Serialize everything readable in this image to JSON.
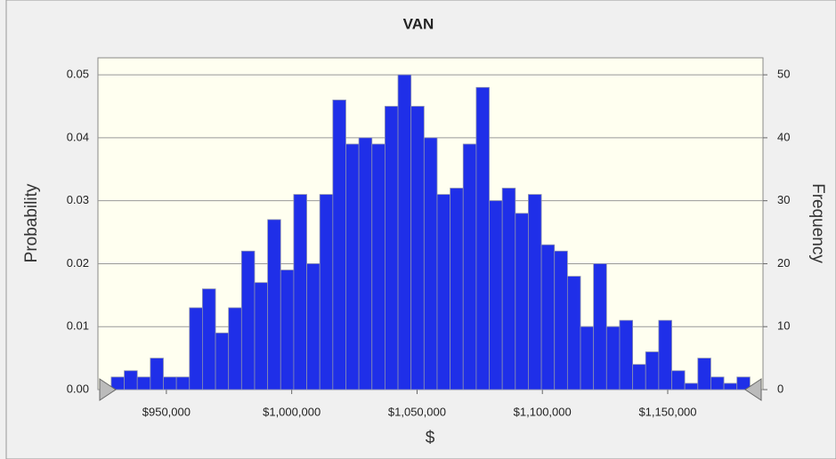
{
  "chart_data": {
    "type": "histogram",
    "title": "VAN",
    "x_label": "$",
    "y_label": "Probability",
    "y2_label": "Frequency",
    "bins": [
      928000,
      933200,
      938400,
      943600,
      948800,
      954000,
      959200,
      964400,
      969600,
      974800,
      980000,
      985200,
      990400,
      995600,
      1000800,
      1006000,
      1011200,
      1016400,
      1021600,
      1026800,
      1032000,
      1037200,
      1042400,
      1047600,
      1052800,
      1058000,
      1063200,
      1068400,
      1073600,
      1078800,
      1084000,
      1089200,
      1094400,
      1099600,
      1104800,
      1110000,
      1115200,
      1120400,
      1125600,
      1130800,
      1136000,
      1141200,
      1146400,
      1151600,
      1156800,
      1162000,
      1167200,
      1172400,
      1177600,
      1182800
    ],
    "series": [
      {
        "name": "Frequency",
        "color": "#1f2fe8",
        "axis": "y2",
        "values": [
          2,
          3,
          2,
          5,
          2,
          2,
          13,
          16,
          9,
          13,
          22,
          17,
          27,
          19,
          31,
          20,
          31,
          46,
          39,
          40,
          39,
          45,
          50,
          45,
          40,
          31,
          32,
          39,
          48,
          30,
          32,
          28,
          31,
          23,
          22,
          18,
          10,
          20,
          10,
          11,
          4,
          6,
          11,
          3,
          1,
          5,
          2,
          1,
          2
        ]
      }
    ],
    "xlim": [
      922700,
      1188000
    ],
    "xticks": [
      {
        "value": 950000,
        "label": "$950,000"
      },
      {
        "value": 1000000,
        "label": "$1,000,000"
      },
      {
        "value": 1050000,
        "label": "$1,050,000"
      },
      {
        "value": 1100000,
        "label": "$1,100,000"
      },
      {
        "value": 1150000,
        "label": "$1,150,000"
      }
    ],
    "ylim": [
      0,
      0.0527
    ],
    "yticks": [
      {
        "value": 0,
        "label": "0.00"
      },
      {
        "value": 0.01,
        "label": "0.01"
      },
      {
        "value": 0.02,
        "label": "0.02"
      },
      {
        "value": 0.03,
        "label": "0.03"
      },
      {
        "value": 0.04,
        "label": "0.04"
      },
      {
        "value": 0.05,
        "label": "0.05"
      }
    ],
    "y2lim": [
      0,
      52.7
    ],
    "y2ticks": [
      0,
      10,
      20,
      30,
      40,
      50
    ],
    "grid": true
  }
}
